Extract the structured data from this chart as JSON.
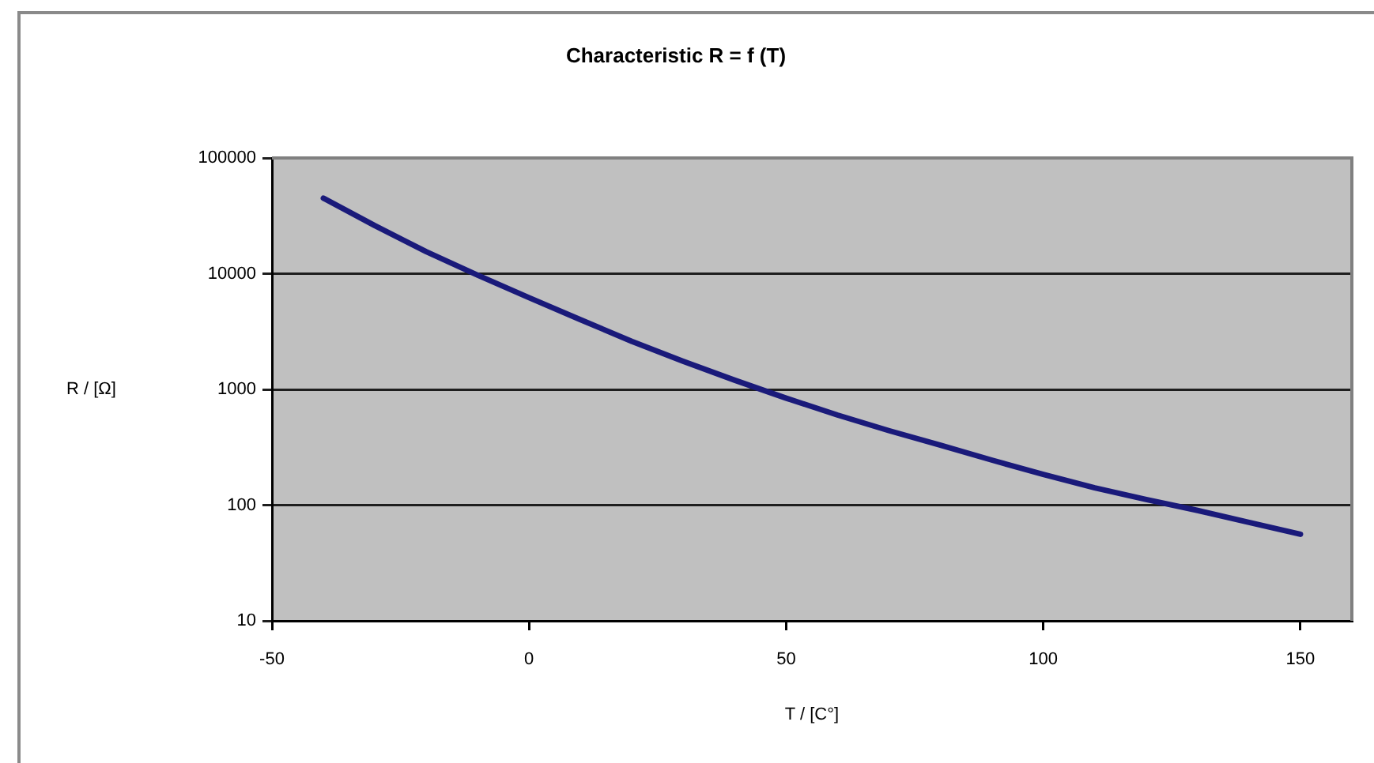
{
  "chart_data": {
    "type": "line",
    "title": "Characteristic R = f (T)",
    "xlabel": "T / [C°]",
    "ylabel": "R / [Ω]",
    "x": [
      -40,
      -30,
      -20,
      -10,
      0,
      10,
      20,
      30,
      40,
      50,
      60,
      70,
      80,
      90,
      100,
      110,
      120,
      130,
      140,
      150
    ],
    "series": [
      {
        "color": "#1a1a7a",
        "values": [
          45000,
          26000,
          15500,
          9700,
          6200,
          4000,
          2600,
          1750,
          1200,
          840,
          600,
          440,
          330,
          245,
          184,
          141,
          112,
          90,
          71,
          56
        ]
      }
    ],
    "xlim": [
      -50,
      160
    ],
    "xticks": [
      -50,
      0,
      50,
      100,
      150
    ],
    "ylim": [
      10,
      100000
    ],
    "yticks": [
      10,
      100,
      1000,
      10000,
      100000
    ],
    "log": "y",
    "grid": "y",
    "legend": false,
    "marker": "none",
    "line_style": "solid"
  }
}
